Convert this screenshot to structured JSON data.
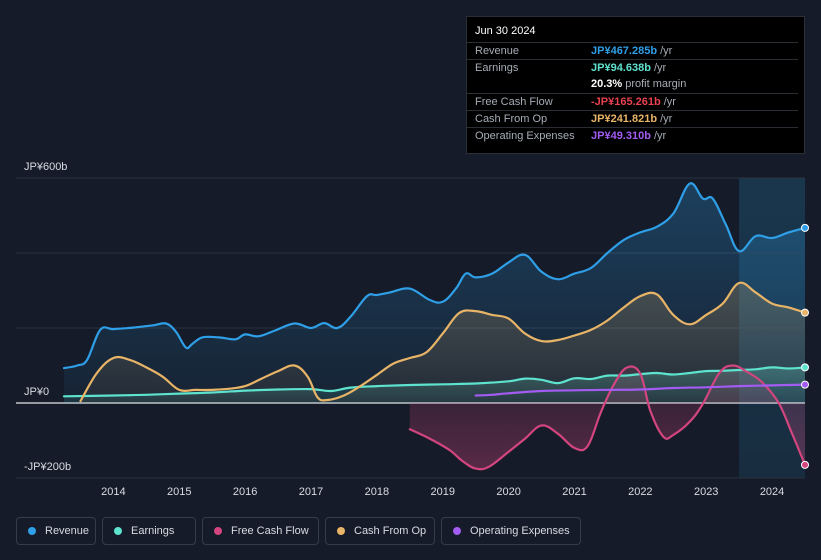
{
  "tooltip": {
    "date": "Jun 30 2024",
    "rows": [
      {
        "label": "Revenue",
        "value": "JP¥467.285b",
        "unit": "/yr",
        "color": "#2f9fe8"
      },
      {
        "label": "Earnings",
        "value": "JP¥94.638b",
        "unit": "/yr",
        "color": "#5ee3cf"
      },
      {
        "label": "",
        "value": "20.3%",
        "unit": "profit margin",
        "color": "#ffffff"
      },
      {
        "label": "Free Cash Flow",
        "value": "-JP¥165.261b",
        "unit": "/yr",
        "color": "#e8414f"
      },
      {
        "label": "Cash From Op",
        "value": "JP¥241.821b",
        "unit": "/yr",
        "color": "#e8b467"
      },
      {
        "label": "Operating Expenses",
        "value": "JP¥49.310b",
        "unit": "/yr",
        "color": "#a35cf2"
      }
    ]
  },
  "legend": [
    {
      "label": "Revenue",
      "color": "#2f9fe8"
    },
    {
      "label": "Earnings",
      "color": "#5ee3cf"
    },
    {
      "label": "Free Cash Flow",
      "color": "#d3457e"
    },
    {
      "label": "Cash From Op",
      "color": "#e8b467"
    },
    {
      "label": "Operating Expenses",
      "color": "#a35cf2"
    }
  ],
  "chart_data": {
    "type": "area",
    "title": "",
    "xlabel": "",
    "ylabel": "",
    "ylim": [
      -200,
      600
    ],
    "y_unit": "JP¥ billions",
    "y_tick_labels": [
      {
        "value": 600,
        "label": "JP¥600b"
      },
      {
        "value": 0,
        "label": "JP¥0"
      },
      {
        "value": -200,
        "label": "-JP¥200b"
      }
    ],
    "x_range": [
      2013.25,
      2024.5
    ],
    "x_tick_labels": [
      "2014",
      "2015",
      "2016",
      "2017",
      "2018",
      "2019",
      "2020",
      "2021",
      "2022",
      "2023",
      "2024"
    ],
    "x_ticks": [
      2014,
      2015,
      2016,
      2017,
      2018,
      2019,
      2020,
      2021,
      2022,
      2023,
      2024
    ],
    "highlight_start": 2023.5,
    "series": [
      {
        "name": "Revenue",
        "color": "#2f9fe8",
        "fill": true,
        "x": [
          2013.25,
          2013.45,
          2013.6,
          2013.8,
          2014.0,
          2014.3,
          2014.6,
          2014.8,
          2014.95,
          2015.1,
          2015.2,
          2015.35,
          2015.6,
          2015.85,
          2016.0,
          2016.2,
          2016.45,
          2016.75,
          2017.0,
          2017.2,
          2017.4,
          2017.6,
          2017.85,
          2018.0,
          2018.2,
          2018.5,
          2018.8,
          2019.0,
          2019.2,
          2019.35,
          2019.5,
          2019.75,
          2020.0,
          2020.25,
          2020.5,
          2020.75,
          2021.0,
          2021.25,
          2021.5,
          2021.75,
          2022.0,
          2022.25,
          2022.5,
          2022.75,
          2022.95,
          2023.1,
          2023.3,
          2023.5,
          2023.75,
          2024.0,
          2024.25,
          2024.5
        ],
        "values": [
          93,
          100,
          115,
          195,
          197,
          201,
          207,
          212,
          190,
          148,
          158,
          175,
          175,
          170,
          183,
          178,
          193,
          212,
          200,
          213,
          200,
          230,
          285,
          288,
          295,
          305,
          275,
          270,
          305,
          345,
          335,
          345,
          375,
          395,
          350,
          330,
          345,
          360,
          400,
          435,
          455,
          470,
          505,
          585,
          545,
          545,
          475,
          405,
          445,
          440,
          455,
          467
        ]
      },
      {
        "name": "Earnings",
        "color": "#5ee3cf",
        "fill": true,
        "x": [
          2013.25,
          2014.0,
          2014.5,
          2015.0,
          2015.5,
          2016.0,
          2016.5,
          2017.0,
          2017.3,
          2017.6,
          2018.0,
          2018.5,
          2019.0,
          2019.5,
          2020.0,
          2020.25,
          2020.5,
          2020.75,
          2021.0,
          2021.25,
          2021.5,
          2021.75,
          2022.0,
          2022.25,
          2022.5,
          2022.75,
          2023.0,
          2023.25,
          2023.5,
          2023.75,
          2024.0,
          2024.25,
          2024.5
        ],
        "values": [
          18,
          20,
          22,
          25,
          28,
          33,
          36,
          37,
          32,
          41,
          45,
          48,
          50,
          52,
          58,
          65,
          62,
          53,
          66,
          64,
          73,
          73,
          77,
          80,
          76,
          80,
          85,
          86,
          88,
          90,
          95,
          92,
          95
        ]
      },
      {
        "name": "Free Cash Flow",
        "color": "#d3457e",
        "fill": true,
        "x": [
          2018.5,
          2018.8,
          2019.1,
          2019.3,
          2019.5,
          2019.7,
          2020.0,
          2020.25,
          2020.5,
          2020.75,
          2021.0,
          2021.2,
          2021.4,
          2021.6,
          2021.8,
          2022.0,
          2022.15,
          2022.35,
          2022.5,
          2022.75,
          2022.95,
          2023.2,
          2023.4,
          2023.6,
          2023.85,
          2024.1,
          2024.3,
          2024.5
        ],
        "values": [
          -70,
          -95,
          -125,
          -155,
          -175,
          -170,
          -130,
          -95,
          -60,
          -82,
          -120,
          -115,
          -25,
          50,
          95,
          78,
          -20,
          -90,
          -85,
          -50,
          -2,
          80,
          100,
          85,
          55,
          0,
          -80,
          -165
        ]
      },
      {
        "name": "Cash From Op",
        "color": "#e8b467",
        "fill": true,
        "x": [
          2013.5,
          2013.75,
          2014.0,
          2014.25,
          2014.5,
          2014.75,
          2015.0,
          2015.25,
          2015.5,
          2015.75,
          2016.0,
          2016.25,
          2016.5,
          2016.75,
          2016.95,
          2017.1,
          2017.25,
          2017.5,
          2017.75,
          2018.0,
          2018.25,
          2018.5,
          2018.75,
          2019.0,
          2019.25,
          2019.5,
          2019.75,
          2020.0,
          2020.25,
          2020.5,
          2020.75,
          2021.0,
          2021.25,
          2021.5,
          2021.75,
          2022.0,
          2022.25,
          2022.5,
          2022.75,
          2023.0,
          2023.25,
          2023.5,
          2023.75,
          2024.0,
          2024.25,
          2024.5
        ],
        "values": [
          5,
          80,
          120,
          115,
          95,
          70,
          35,
          35,
          35,
          38,
          45,
          65,
          85,
          100,
          70,
          15,
          8,
          20,
          45,
          75,
          105,
          120,
          135,
          185,
          240,
          245,
          235,
          225,
          185,
          165,
          168,
          180,
          195,
          220,
          255,
          285,
          290,
          235,
          210,
          235,
          265,
          320,
          295,
          265,
          255,
          241
        ]
      },
      {
        "name": "Operating Expenses",
        "color": "#a35cf2",
        "fill": false,
        "x": [
          2019.5,
          2019.75,
          2020.0,
          2020.5,
          2021.0,
          2021.5,
          2022.0,
          2022.5,
          2023.0,
          2023.5,
          2024.0,
          2024.5
        ],
        "values": [
          20,
          22,
          26,
          32,
          34,
          35,
          36,
          40,
          42,
          45,
          47,
          49
        ]
      }
    ]
  }
}
